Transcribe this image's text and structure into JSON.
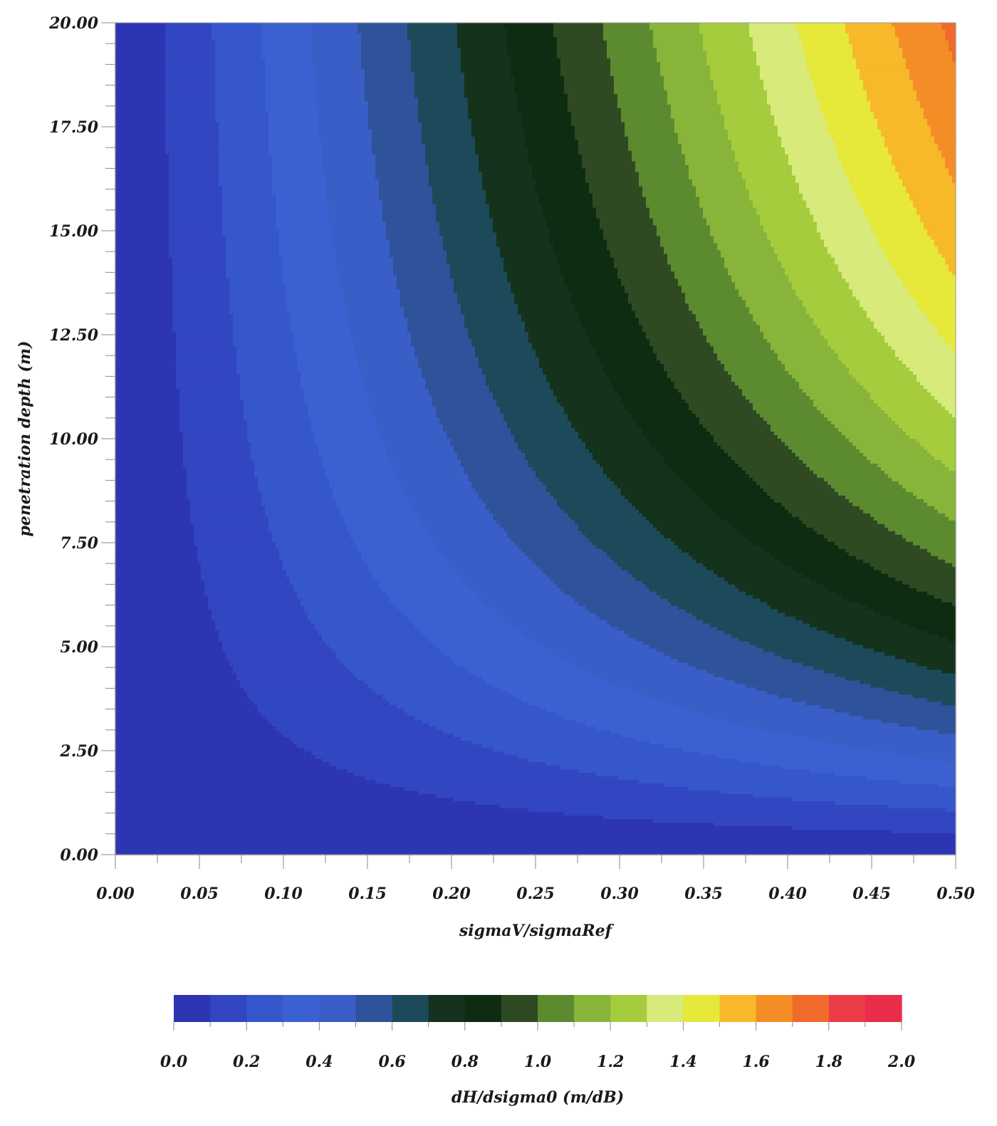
{
  "chart_data": {
    "type": "heatmap",
    "style": "filled contour",
    "xlabel": "sigmaV/sigmaRef",
    "ylabel": "penetration depth (m)",
    "xlim": [
      0.0,
      0.5
    ],
    "ylim": [
      0.0,
      20.0
    ],
    "x_ticks": [
      "0.00",
      "0.05",
      "0.10",
      "0.15",
      "0.20",
      "0.25",
      "0.30",
      "0.35",
      "0.40",
      "0.45",
      "0.50"
    ],
    "y_ticks": [
      "0.00",
      "2.50",
      "5.00",
      "7.50",
      "10.00",
      "12.50",
      "15.00",
      "17.50",
      "20.00"
    ],
    "grid": false,
    "z_scale": "approximately 4 * x * (1 - exp(-y / 10)), contour step 0.1",
    "colorbar": {
      "label": "dH/dsigma0 (m/dB)",
      "range": [
        0.0,
        2.0
      ],
      "tick_labels": [
        "0.0",
        "0.2",
        "0.4",
        "0.6",
        "0.8",
        "1.0",
        "1.2",
        "1.4",
        "1.6",
        "1.8",
        "2.0"
      ],
      "levels": [
        {
          "from": 0.0,
          "to": 0.1,
          "color": "#2d35b3"
        },
        {
          "from": 0.1,
          "to": 0.2,
          "color": "#3146c0"
        },
        {
          "from": 0.2,
          "to": 0.3,
          "color": "#3656cc"
        },
        {
          "from": 0.3,
          "to": 0.4,
          "color": "#3b61d1"
        },
        {
          "from": 0.4,
          "to": 0.5,
          "color": "#3a5ec7"
        },
        {
          "from": 0.5,
          "to": 0.6,
          "color": "#2f539a"
        },
        {
          "from": 0.6,
          "to": 0.7,
          "color": "#1c4a5a"
        },
        {
          "from": 0.7,
          "to": 0.8,
          "color": "#14321c"
        },
        {
          "from": 0.8,
          "to": 0.9,
          "color": "#0e2c12"
        },
        {
          "from": 0.9,
          "to": 1.0,
          "color": "#2f4a22"
        },
        {
          "from": 1.0,
          "to": 1.1,
          "color": "#5c8a2e"
        },
        {
          "from": 1.1,
          "to": 1.2,
          "color": "#88b43a"
        },
        {
          "from": 1.2,
          "to": 1.3,
          "color": "#a5cc3c"
        },
        {
          "from": 1.3,
          "to": 1.4,
          "color": "#d8ea7a"
        },
        {
          "from": 1.4,
          "to": 1.5,
          "color": "#e6e83a"
        },
        {
          "from": 1.5,
          "to": 1.6,
          "color": "#f7b82a"
        },
        {
          "from": 1.6,
          "to": 1.7,
          "color": "#f58d26"
        },
        {
          "from": 1.7,
          "to": 1.8,
          "color": "#f06a2c"
        },
        {
          "from": 1.8,
          "to": 1.9,
          "color": "#ec3c48"
        },
        {
          "from": 1.9,
          "to": 2.0,
          "color": "#e92c4a"
        }
      ]
    }
  }
}
